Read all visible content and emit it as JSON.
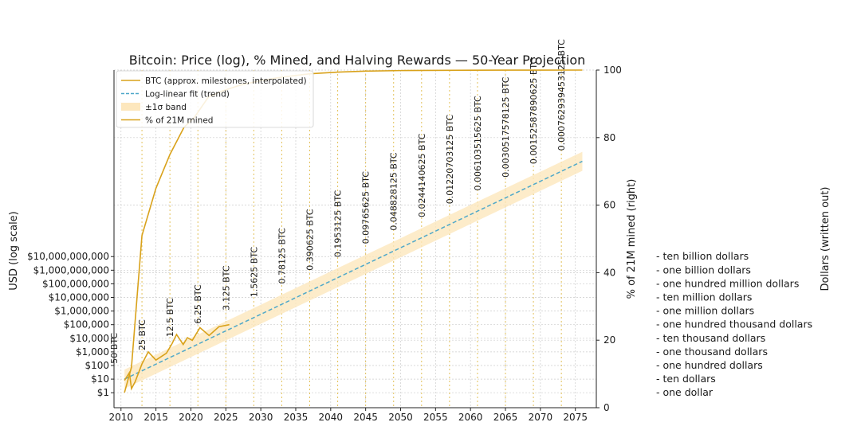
{
  "colors": {
    "price": "#d9a21b",
    "mined": "#d9a21b",
    "trend": "#4fa8c9",
    "band": "#fde7bd",
    "halving_line": "#e3c15a",
    "grid": "#cccccc",
    "axis": "#222222",
    "text": "#1a1a1a"
  },
  "chart_data": {
    "type": "line",
    "title": "Bitcoin: Price (log), % Mined, and Halving Rewards — 50-Year Projection",
    "xlabel": "",
    "ylabel_left": "USD (log scale)",
    "ylabel_right": "% of 21M mined (right)",
    "ylabel_outer": "Dollars (written out)",
    "x_range": [
      2009,
      2078
    ],
    "x_ticks": [
      2010,
      2015,
      2020,
      2025,
      2030,
      2035,
      2040,
      2045,
      2050,
      2055,
      2060,
      2065,
      2070,
      2075
    ],
    "left_axis_scale": "log",
    "left_axis_range_log10": [
      -1.1,
      23.7
    ],
    "left_ticks": [
      {
        "value": 1,
        "label": "$1"
      },
      {
        "value": 10,
        "label": "$10"
      },
      {
        "value": 100,
        "label": "$100"
      },
      {
        "value": 1000,
        "label": "$1,000"
      },
      {
        "value": 10000,
        "label": "$10,000"
      },
      {
        "value": 100000,
        "label": "$100,000"
      },
      {
        "value": 1000000,
        "label": "$1,000,000"
      },
      {
        "value": 10000000,
        "label": "$10,000,000"
      },
      {
        "value": 100000000,
        "label": "$100,000,000"
      },
      {
        "value": 1000000000,
        "label": "$1,000,000,000"
      },
      {
        "value": 10000000000,
        "label": "$10,000,000,000"
      }
    ],
    "right_axis_range": [
      0,
      100
    ],
    "right_ticks": [
      0,
      20,
      40,
      60,
      80,
      100
    ],
    "written_labels": [
      "ten billion dollars",
      "one billion dollars",
      "one hundred million dollars",
      "ten million dollars",
      "one million dollars",
      "one hundred thousand dollars",
      "ten thousand dollars",
      "one thousand dollars",
      "one hundred dollars",
      "ten dollars",
      "one dollar"
    ],
    "grid": true,
    "legend_position": "top-left",
    "legend": [
      {
        "label": "BTC (approx. milestones, interpolated)",
        "kind": "line",
        "color_key": "price"
      },
      {
        "label": "Log-linear fit (trend)",
        "kind": "dashed",
        "color_key": "trend"
      },
      {
        "label": "±1σ band",
        "kind": "band",
        "color_key": "band"
      },
      {
        "label": "% of 21M mined",
        "kind": "line",
        "color_key": "mined"
      }
    ],
    "series": [
      {
        "name": "BTC (approx. milestones, interpolated)",
        "axis": "left",
        "x": [
          2010.5,
          2011.2,
          2011.5,
          2012.0,
          2013.0,
          2013.9,
          2015.0,
          2016.5,
          2017.3,
          2017.95,
          2018.9,
          2019.5,
          2020.2,
          2021.3,
          2022.6,
          2024.0,
          2025.5
        ],
        "y": [
          8,
          30,
          2,
          6,
          130,
          1000,
          250,
          800,
          4000,
          19000,
          3500,
          11000,
          7000,
          60000,
          16000,
          70000,
          100000
        ]
      },
      {
        "name": "Log-linear fit (trend)",
        "axis": "left",
        "x": [
          2010.5,
          2076
        ],
        "y": [
          10,
          1e+17
        ],
        "band_sigma_log10": 0.7
      },
      {
        "name": "% of 21M mined",
        "axis": "right",
        "x": [
          2010.5,
          2011.5,
          2013.0,
          2015.0,
          2017.0,
          2019.0,
          2020.5,
          2022.5,
          2024.5,
          2027.0,
          2030.0,
          2033.0,
          2037.0,
          2041.0,
          2045.0,
          2050.0,
          2060.0,
          2070.0,
          2076.0
        ],
        "y": [
          4.5,
          12,
          51,
          65,
          75,
          83,
          86,
          92,
          93.8,
          95.5,
          96.9,
          97.9,
          98.9,
          99.4,
          99.7,
          99.85,
          99.96,
          99.99,
          100
        ]
      }
    ],
    "halvings": [
      {
        "year": 2009.0,
        "reward": "50 BTC"
      },
      {
        "year": 2013.0,
        "reward": "25 BTC"
      },
      {
        "year": 2017.0,
        "reward": "12.5 BTC"
      },
      {
        "year": 2021.0,
        "reward": "6.25 BTC"
      },
      {
        "year": 2025.0,
        "reward": "3.125 BTC"
      },
      {
        "year": 2029.0,
        "reward": "1.5625 BTC"
      },
      {
        "year": 2033.0,
        "reward": "0.78125 BTC"
      },
      {
        "year": 2037.0,
        "reward": "0.390625 BTC"
      },
      {
        "year": 2041.0,
        "reward": "0.1953125 BTC"
      },
      {
        "year": 2045.0,
        "reward": "0.09765625 BTC"
      },
      {
        "year": 2049.0,
        "reward": "0.048828125 BTC"
      },
      {
        "year": 2053.0,
        "reward": "0.0244140625 BTC"
      },
      {
        "year": 2057.0,
        "reward": "0.01220703125 BTC"
      },
      {
        "year": 2061.0,
        "reward": "0.006103515625 BTC"
      },
      {
        "year": 2065.0,
        "reward": "0.0030517578125 BTC"
      },
      {
        "year": 2069.0,
        "reward": "0.00152587890625 BTC"
      },
      {
        "year": 2073.0,
        "reward": "0.000762939453125 BTC"
      }
    ]
  }
}
